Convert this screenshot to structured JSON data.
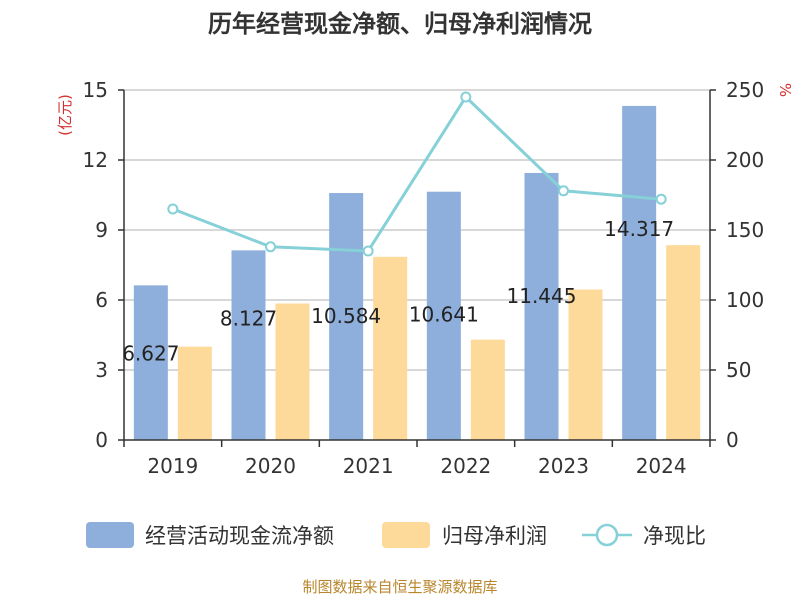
{
  "chart_data": {
    "type": "bar",
    "title": "历年经营现金净额、归母净利润情况",
    "categories": [
      "2019",
      "2020",
      "2021",
      "2022",
      "2023",
      "2024"
    ],
    "series": [
      {
        "name": "经营活动现金流净额",
        "kind": "bar",
        "axis": "left",
        "color": "#8eaedb",
        "values": [
          6.627,
          8.127,
          10.584,
          10.641,
          11.445,
          14.317
        ],
        "labels": [
          "6.627",
          "8.127",
          "10.584",
          "10.641",
          "11.445",
          "14.317"
        ]
      },
      {
        "name": "归母净利润",
        "kind": "bar",
        "axis": "left",
        "color": "#fdd99a",
        "values": [
          4.0,
          5.85,
          7.85,
          4.3,
          6.45,
          8.35
        ]
      },
      {
        "name": "净现比",
        "kind": "line",
        "axis": "right",
        "color": "#86d0d8",
        "values": [
          165,
          138,
          135,
          245,
          178,
          172
        ]
      }
    ],
    "yleft": {
      "unit": "(亿元)",
      "ylim": [
        0,
        15
      ],
      "ticks": [
        0,
        3,
        6,
        9,
        12,
        15
      ]
    },
    "yright": {
      "unit": "%",
      "ylim": [
        0,
        250
      ],
      "ticks": [
        0,
        50,
        100,
        150,
        200,
        250
      ]
    },
    "grid": true,
    "legend_position": "bottom"
  },
  "source": "制图数据来自恒生聚源数据库"
}
